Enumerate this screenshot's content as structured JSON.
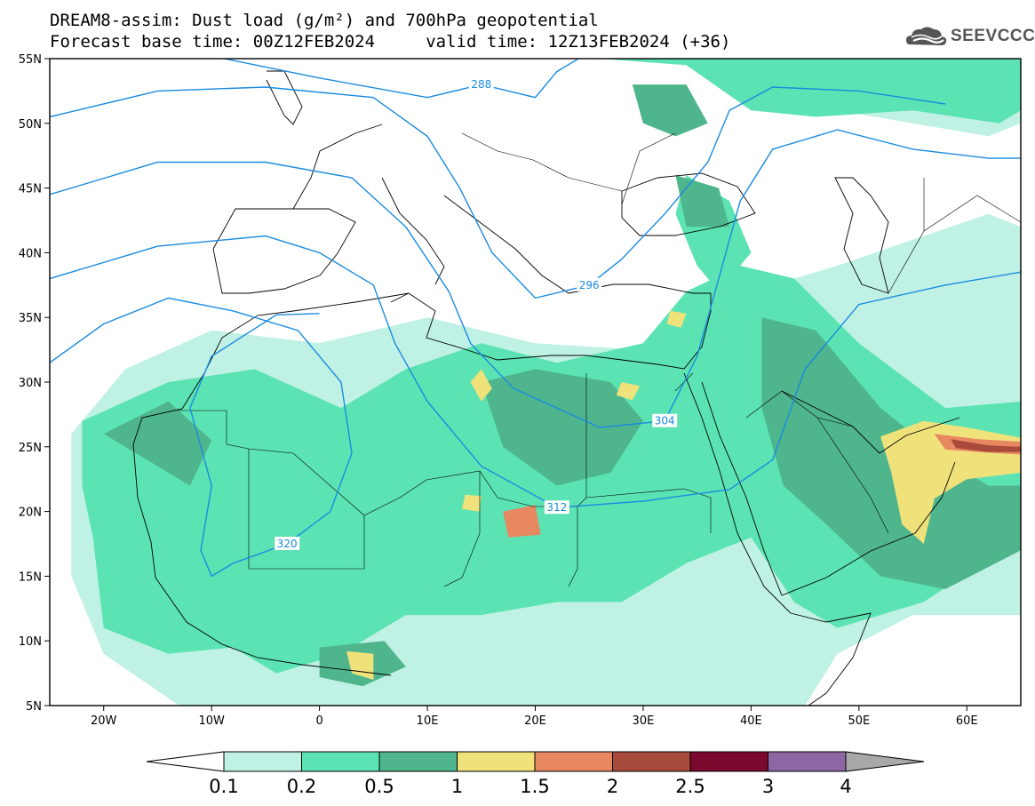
{
  "title_line1": "DREAM8-assim: Dust load (g/m²) and 700hPa geopotential",
  "title_line2": "Forecast base time: 00Z12FEB2024     valid time: 12Z13FEB2024 (+36)",
  "logo_text": "SEEVCCC",
  "colors": {
    "level1": "#bff2e4",
    "level2": "#5ce3b3",
    "level3": "#4fb58d",
    "level4": "#f0e27a",
    "level5": "#e88860",
    "level6": "#a84a3c",
    "level7": "#7b0a2e",
    "level8": "#8c67a3",
    "over": "#a8a8a8",
    "contour": "#1a8be0",
    "coast": "#000000"
  },
  "axes": {
    "lon_range": [
      -25,
      65
    ],
    "lat_range": [
      5,
      55
    ],
    "lon_ticks": [
      {
        "value": -20,
        "label": "20W"
      },
      {
        "value": -10,
        "label": "10W"
      },
      {
        "value": 0,
        "label": "0"
      },
      {
        "value": 10,
        "label": "10E"
      },
      {
        "value": 20,
        "label": "20E"
      },
      {
        "value": 30,
        "label": "30E"
      },
      {
        "value": 40,
        "label": "40E"
      },
      {
        "value": 50,
        "label": "50E"
      },
      {
        "value": 60,
        "label": "60E"
      }
    ],
    "lat_ticks": [
      {
        "value": 55,
        "label": "55N"
      },
      {
        "value": 50,
        "label": "50N"
      },
      {
        "value": 45,
        "label": "45N"
      },
      {
        "value": 40,
        "label": "40N"
      },
      {
        "value": 35,
        "label": "35N"
      },
      {
        "value": 30,
        "label": "30N"
      },
      {
        "value": 25,
        "label": "25N"
      },
      {
        "value": 20,
        "label": "20N"
      },
      {
        "value": 15,
        "label": "15N"
      },
      {
        "value": 10,
        "label": "10N"
      },
      {
        "value": 5,
        "label": "5N"
      }
    ]
  },
  "colorbar": {
    "labels": [
      "0.1",
      "0.2",
      "0.5",
      "1",
      "1.5",
      "2",
      "2.5",
      "3",
      "4"
    ]
  },
  "contours": [
    {
      "label": "288",
      "points": [
        [
          -25,
          56.5
        ],
        [
          -10,
          55.2
        ],
        [
          0,
          53.5
        ],
        [
          10,
          52
        ],
        [
          15,
          53
        ],
        [
          20,
          52
        ],
        [
          22,
          54
        ],
        [
          25,
          55.5
        ]
      ]
    },
    {
      "label": "296",
      "points": [
        [
          -25,
          50.5
        ],
        [
          -15,
          52.5
        ],
        [
          -5,
          52.8
        ],
        [
          5,
          52
        ],
        [
          10,
          49
        ],
        [
          13,
          45
        ],
        [
          16,
          40
        ],
        [
          20,
          36.5
        ],
        [
          25,
          37.5
        ],
        [
          28,
          39.5
        ],
        [
          32,
          43
        ],
        [
          36,
          47
        ],
        [
          38,
          51
        ],
        [
          42,
          52.8
        ],
        [
          50,
          52.5
        ],
        [
          58,
          51.5
        ]
      ]
    },
    {
      "label": "304",
      "points": [
        [
          -25,
          44.5
        ],
        [
          -15,
          47
        ],
        [
          -5,
          47
        ],
        [
          3,
          45.8
        ],
        [
          8,
          42
        ],
        [
          12,
          37
        ],
        [
          14,
          33
        ],
        [
          18,
          29.5
        ],
        [
          26,
          26.5
        ],
        [
          32,
          27
        ],
        [
          35,
          32
        ],
        [
          37,
          38
        ],
        [
          39,
          44
        ],
        [
          42,
          48
        ],
        [
          48,
          49.5
        ],
        [
          55,
          48
        ],
        [
          62,
          47.3
        ],
        [
          65,
          47.3
        ]
      ]
    },
    {
      "label": "312",
      "points": [
        [
          -25,
          38
        ],
        [
          -15,
          40.5
        ],
        [
          -5,
          41.3
        ],
        [
          0,
          40
        ],
        [
          5,
          37.5
        ],
        [
          7,
          33
        ],
        [
          10,
          28.5
        ],
        [
          15,
          23.5
        ],
        [
          22,
          20.3
        ],
        [
          30,
          20.8
        ],
        [
          38,
          21.7
        ],
        [
          42,
          24
        ],
        [
          45,
          31
        ],
        [
          50,
          36
        ],
        [
          58,
          37.5
        ],
        [
          65,
          38.5
        ]
      ]
    },
    {
      "label": "320",
      "points": [
        [
          -25,
          31.5
        ],
        [
          -20,
          34.5
        ],
        [
          -14,
          36.5
        ],
        [
          -8,
          35.5
        ],
        [
          -2,
          34
        ],
        [
          2,
          30
        ],
        [
          3,
          24.5
        ],
        [
          1,
          20
        ],
        [
          -3,
          17.5
        ],
        [
          -8,
          16
        ],
        [
          -10,
          15
        ],
        [
          -11,
          17
        ],
        [
          -10,
          22
        ],
        [
          -12,
          28
        ],
        [
          -10,
          32
        ],
        [
          -4,
          35.2
        ],
        [
          0,
          35.3
        ]
      ]
    }
  ],
  "dust_polygons": [
    {
      "level": 1,
      "points": [
        [
          -23,
          26
        ],
        [
          -18,
          31
        ],
        [
          -10,
          34
        ],
        [
          0,
          33
        ],
        [
          10,
          35
        ],
        [
          20,
          33
        ],
        [
          30,
          32.5
        ],
        [
          36,
          36
        ],
        [
          40,
          37
        ],
        [
          48,
          39
        ],
        [
          55,
          41
        ],
        [
          62,
          43
        ],
        [
          65,
          42
        ],
        [
          65,
          12
        ],
        [
          55,
          12
        ],
        [
          48,
          9
        ],
        [
          45,
          5
        ],
        [
          30,
          5
        ],
        [
          15,
          5
        ],
        [
          0,
          5
        ],
        [
          -13,
          5
        ],
        [
          -20,
          9
        ],
        [
          -23,
          15
        ]
      ]
    },
    {
      "level": 1,
      "points": [
        [
          25,
          55
        ],
        [
          34,
          55
        ],
        [
          42,
          52
        ],
        [
          48,
          51
        ],
        [
          55,
          50
        ],
        [
          62,
          49
        ],
        [
          65,
          50
        ],
        [
          65,
          53
        ],
        [
          58,
          54
        ],
        [
          50,
          55
        ]
      ]
    },
    {
      "level": 2,
      "points": [
        [
          -22,
          27
        ],
        [
          -14,
          30
        ],
        [
          -6,
          31
        ],
        [
          2,
          28
        ],
        [
          8,
          31
        ],
        [
          15,
          33
        ],
        [
          22,
          31.5
        ],
        [
          30,
          33
        ],
        [
          34,
          37
        ],
        [
          39,
          39
        ],
        [
          44,
          38
        ],
        [
          50,
          33
        ],
        [
          58,
          28
        ],
        [
          65,
          28.5
        ],
        [
          65,
          18
        ],
        [
          56,
          13
        ],
        [
          48,
          11
        ],
        [
          44,
          13
        ],
        [
          40,
          18
        ],
        [
          34,
          16
        ],
        [
          28,
          13
        ],
        [
          22,
          13
        ],
        [
          15,
          12
        ],
        [
          8,
          12
        ],
        [
          2,
          9
        ],
        [
          -4,
          7.5
        ],
        [
          -8,
          9.5
        ],
        [
          -14,
          9
        ],
        [
          -20,
          11
        ],
        [
          -21,
          18
        ],
        [
          -22,
          22
        ]
      ]
    },
    {
      "level": 2,
      "points": [
        [
          26,
          55
        ],
        [
          34,
          54.5
        ],
        [
          40,
          51
        ],
        [
          46,
          50.5
        ],
        [
          55,
          51
        ],
        [
          63,
          50
        ],
        [
          65,
          51
        ],
        [
          65,
          55
        ]
      ]
    },
    {
      "level": 2,
      "points": [
        [
          34,
          46
        ],
        [
          38,
          44
        ],
        [
          40,
          40
        ],
        [
          37,
          37
        ],
        [
          35,
          39
        ],
        [
          33,
          43
        ]
      ]
    },
    {
      "level": 3,
      "points": [
        [
          -20,
          26
        ],
        [
          -14,
          28.5
        ],
        [
          -10,
          25.5
        ],
        [
          -12,
          22
        ]
      ]
    },
    {
      "level": 3,
      "points": [
        [
          15,
          30
        ],
        [
          20,
          31
        ],
        [
          27,
          30
        ],
        [
          30,
          27
        ],
        [
          27,
          23
        ],
        [
          22,
          22
        ],
        [
          17,
          25
        ]
      ]
    },
    {
      "level": 3,
      "points": [
        [
          41,
          35
        ],
        [
          46,
          34
        ],
        [
          52,
          28
        ],
        [
          58,
          24
        ],
        [
          62,
          22
        ],
        [
          65,
          22
        ],
        [
          65,
          17
        ],
        [
          58,
          14
        ],
        [
          52,
          15
        ],
        [
          47,
          19
        ],
        [
          43,
          22
        ],
        [
          41,
          28
        ]
      ]
    },
    {
      "level": 3,
      "points": [
        [
          29,
          53
        ],
        [
          34,
          53
        ],
        [
          36,
          50
        ],
        [
          33,
          49
        ],
        [
          30,
          50
        ]
      ]
    },
    {
      "level": 3,
      "points": [
        [
          33,
          46
        ],
        [
          37,
          45
        ],
        [
          38,
          42
        ],
        [
          34,
          42
        ]
      ]
    },
    {
      "level": 3,
      "points": [
        [
          0,
          9.5
        ],
        [
          6,
          10
        ],
        [
          8,
          8
        ],
        [
          4,
          6.5
        ],
        [
          0,
          7.2
        ]
      ]
    },
    {
      "level": 4,
      "points": [
        [
          52,
          25.8
        ],
        [
          56,
          27
        ],
        [
          60,
          26.5
        ],
        [
          65,
          25.7
        ],
        [
          65,
          23
        ],
        [
          60,
          22.5
        ],
        [
          57,
          21
        ],
        [
          56,
          17.5
        ],
        [
          54,
          19
        ],
        [
          53,
          23
        ]
      ]
    },
    {
      "level": 4,
      "points": [
        [
          15,
          31
        ],
        [
          16,
          29.5
        ],
        [
          15,
          28.5
        ],
        [
          14,
          30
        ]
      ]
    },
    {
      "level": 4,
      "points": [
        [
          28,
          30
        ],
        [
          29.7,
          29.7
        ],
        [
          29,
          28.6
        ],
        [
          27.5,
          29
        ]
      ]
    },
    {
      "level": 4,
      "points": [
        [
          32.5,
          35.5
        ],
        [
          34,
          35.3
        ],
        [
          33.5,
          34.2
        ],
        [
          32.2,
          34.5
        ]
      ]
    },
    {
      "level": 4,
      "points": [
        [
          2.5,
          9.2
        ],
        [
          5,
          9
        ],
        [
          5,
          7
        ],
        [
          3,
          7.5
        ]
      ]
    },
    {
      "level": 4,
      "points": [
        [
          13.5,
          21.3
        ],
        [
          15,
          21.2
        ],
        [
          14.8,
          20
        ],
        [
          13.2,
          20.2
        ]
      ]
    },
    {
      "level": 5,
      "points": [
        [
          17,
          20
        ],
        [
          20,
          20.5
        ],
        [
          20.5,
          18.2
        ],
        [
          17.5,
          18
        ]
      ]
    },
    {
      "level": 5,
      "points": [
        [
          57,
          26
        ],
        [
          61,
          25.6
        ],
        [
          65,
          25.4
        ],
        [
          65,
          24.4
        ],
        [
          61,
          24.6
        ],
        [
          58,
          24.8
        ]
      ]
    },
    {
      "level": 6,
      "points": [
        [
          58.5,
          25.6
        ],
        [
          62,
          25.1
        ],
        [
          65,
          25
        ],
        [
          65,
          24.6
        ],
        [
          62,
          24.6
        ],
        [
          59,
          24.9
        ]
      ]
    }
  ]
}
